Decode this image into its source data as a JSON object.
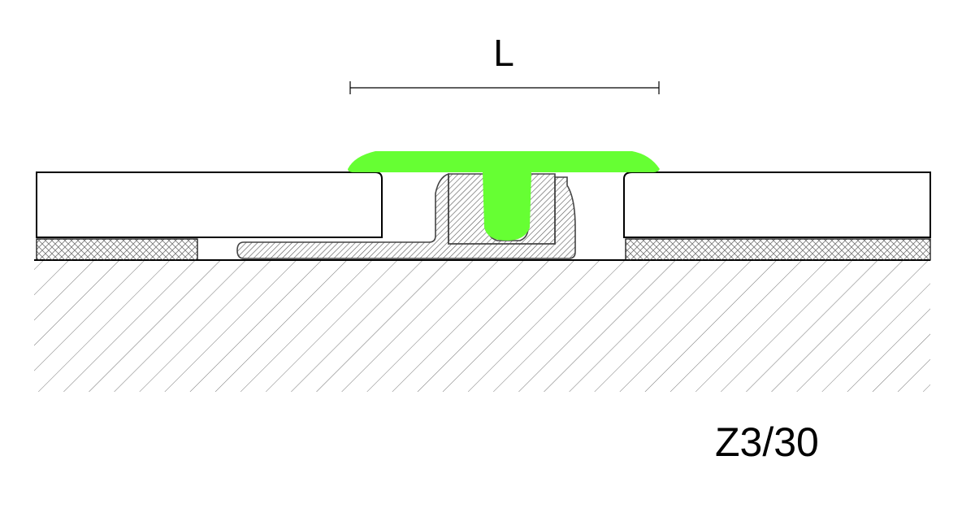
{
  "dimension_label": "L",
  "model_code": "Z3/30",
  "colors": {
    "profile_insert": "#66ff33",
    "base_profile": "#9a9a9a",
    "outline": "#000000",
    "hatch": "#555555"
  }
}
